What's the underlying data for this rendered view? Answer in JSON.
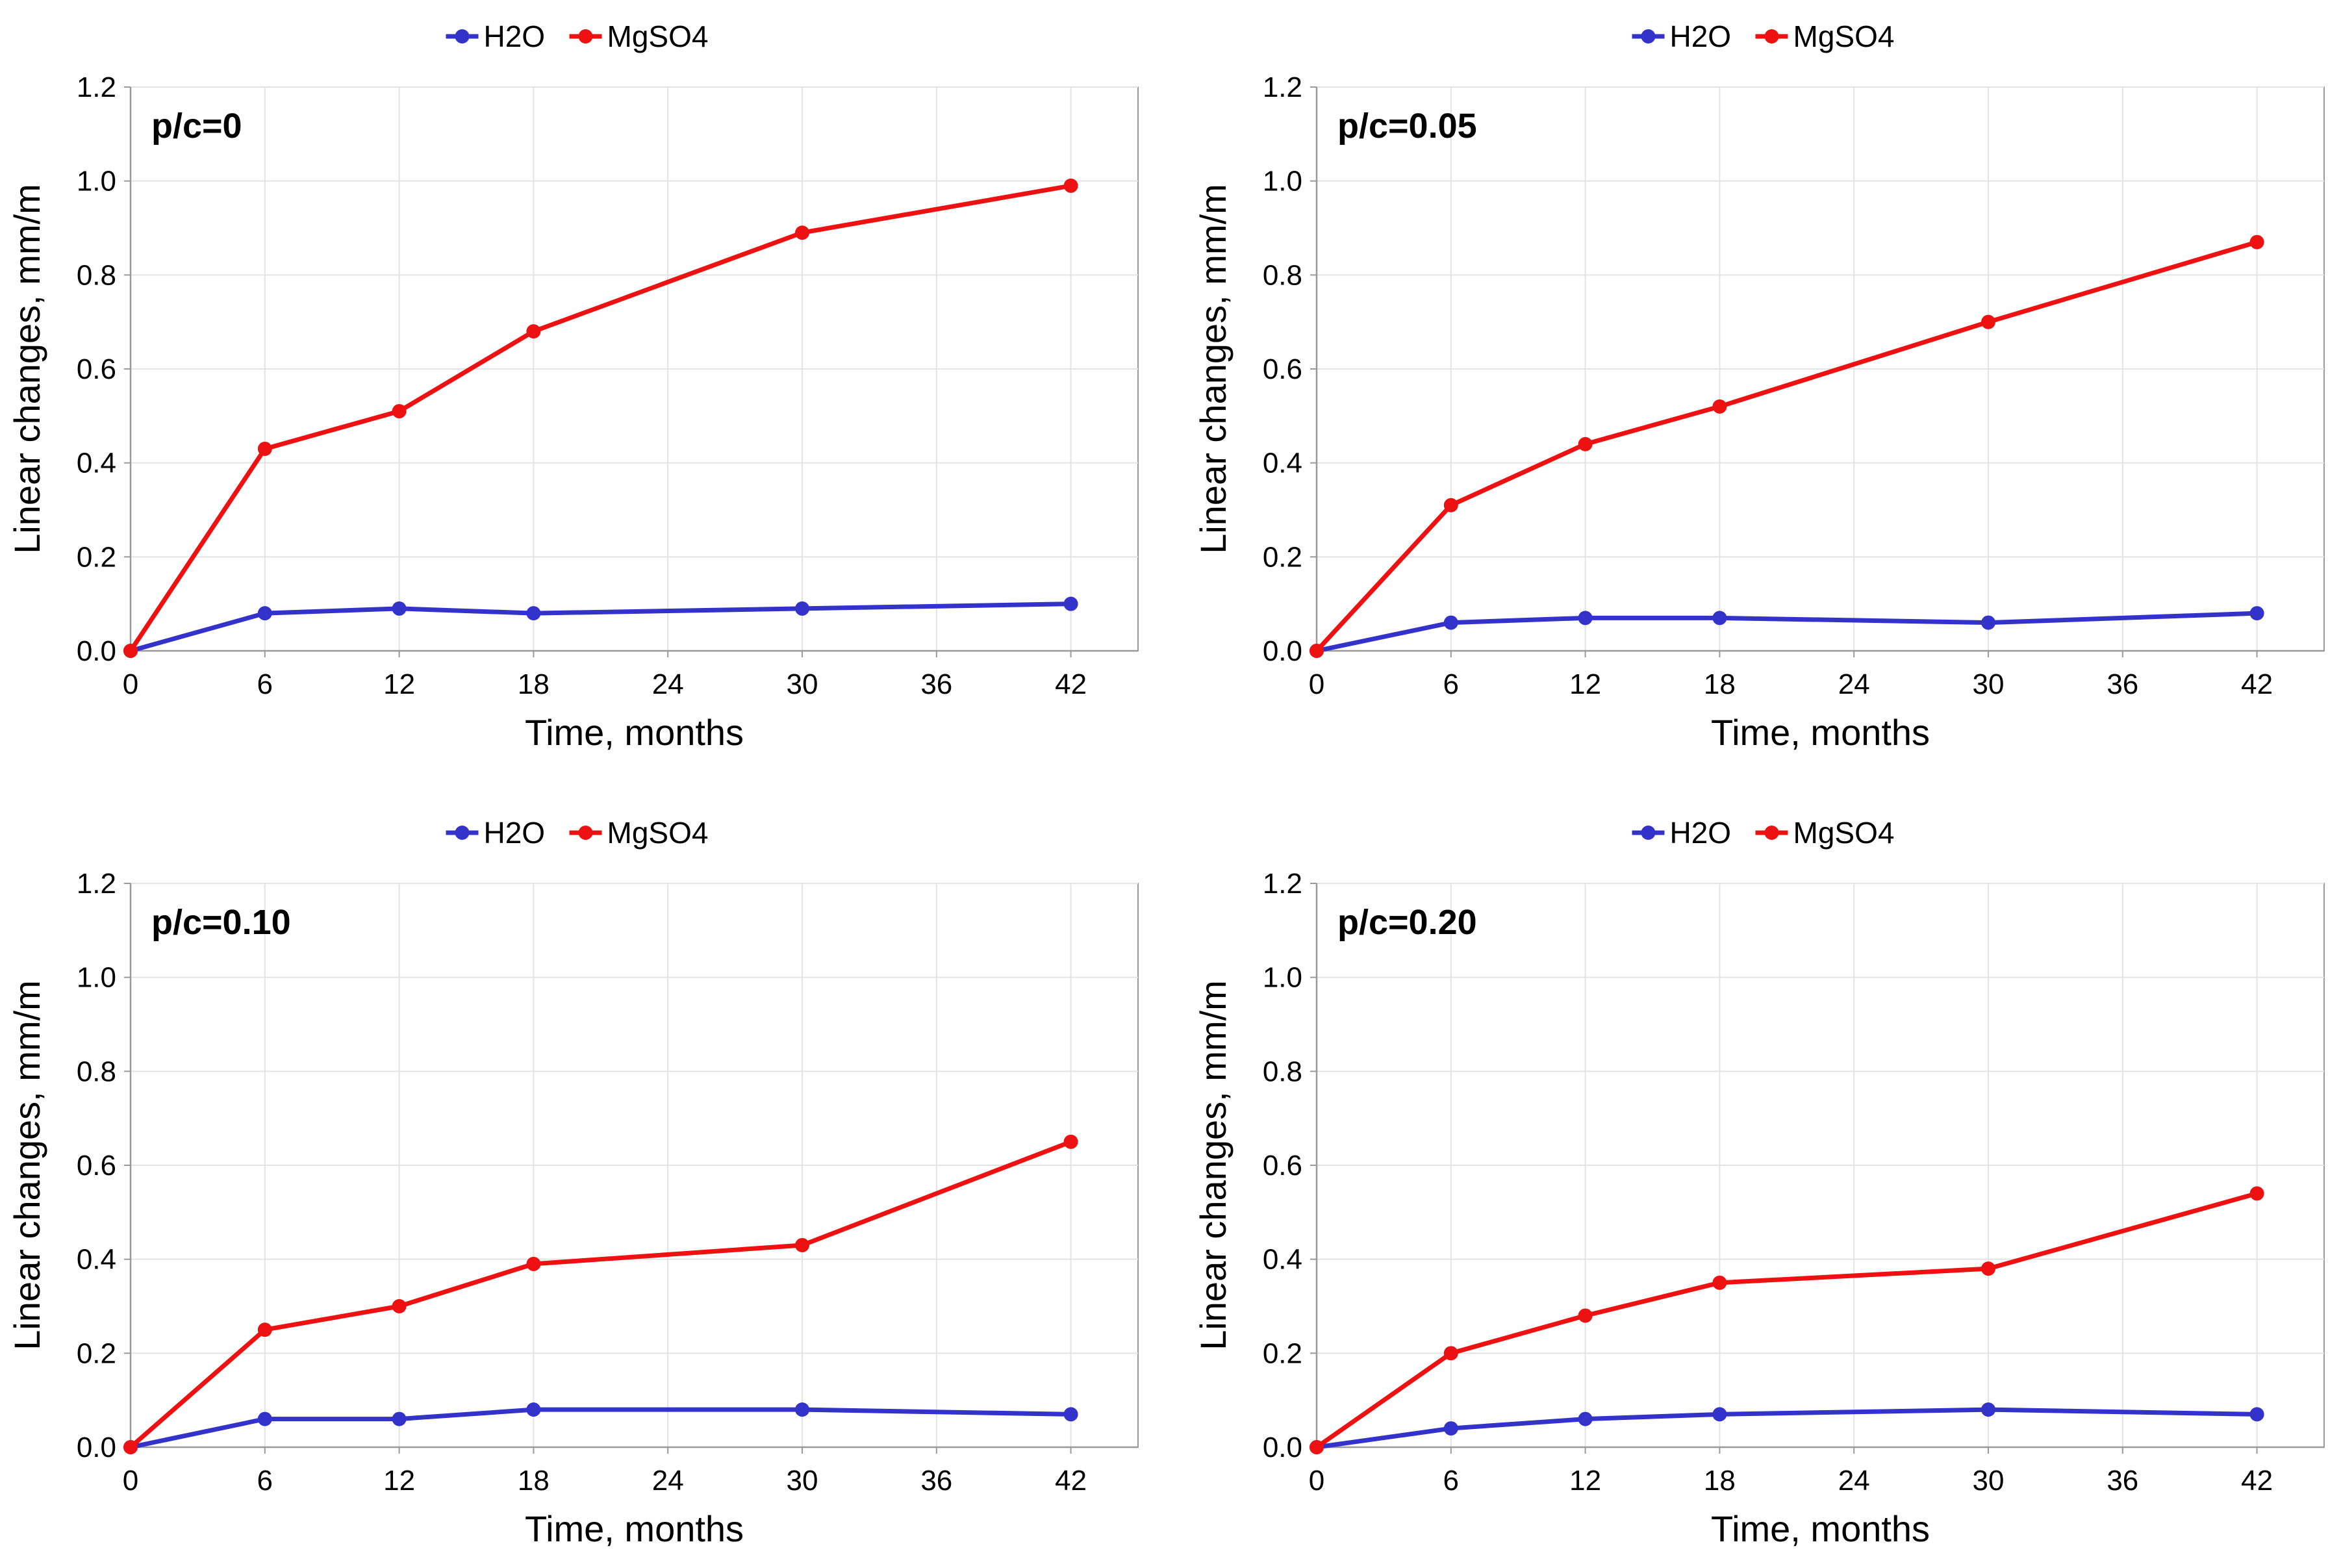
{
  "colors": {
    "h2o": "#3333CC",
    "mgso4": "#EE1111",
    "grid": "#E3E3E3",
    "axis": "#999999",
    "text": "#000000"
  },
  "chart_data": [
    {
      "type": "line",
      "annotation": "p/c=0",
      "xlabel": "Time, months",
      "ylabel": "Linear changes, mm/m",
      "xlim": [
        0,
        45
      ],
      "ylim": [
        0,
        1.2
      ],
      "xticks": [
        "0",
        "6",
        "12",
        "18",
        "24",
        "30",
        "36",
        "42"
      ],
      "yticks": [
        "0.0",
        "0.2",
        "0.4",
        "0.6",
        "0.8",
        "1.0",
        "1.2"
      ],
      "x": [
        0,
        6,
        12,
        18,
        30,
        42
      ],
      "legend": "top-center",
      "grid": true,
      "series": [
        {
          "name": "H2O",
          "values": [
            0,
            0.08,
            0.09,
            0.08,
            0.09,
            0.1
          ]
        },
        {
          "name": "MgSO4",
          "values": [
            0,
            0.43,
            0.51,
            0.68,
            0.89,
            0.99
          ]
        }
      ]
    },
    {
      "type": "line",
      "annotation": "p/c=0.05",
      "xlabel": "Time, months",
      "ylabel": "Linear changes, mm/m",
      "xlim": [
        0,
        45
      ],
      "ylim": [
        0,
        1.2
      ],
      "xticks": [
        "0",
        "6",
        "12",
        "18",
        "24",
        "30",
        "36",
        "42"
      ],
      "yticks": [
        "0.0",
        "0.2",
        "0.4",
        "0.6",
        "0.8",
        "1.0",
        "1.2"
      ],
      "x": [
        0,
        6,
        12,
        18,
        30,
        42
      ],
      "legend": "top-center",
      "grid": true,
      "series": [
        {
          "name": "H2O",
          "values": [
            0,
            0.06,
            0.07,
            0.07,
            0.06,
            0.08
          ]
        },
        {
          "name": "MgSO4",
          "values": [
            0,
            0.31,
            0.44,
            0.52,
            0.7,
            0.87
          ]
        }
      ]
    },
    {
      "type": "line",
      "annotation": "p/c=0.10",
      "xlabel": "Time, months",
      "ylabel": "Linear changes, mm/m",
      "xlim": [
        0,
        45
      ],
      "ylim": [
        0,
        1.2
      ],
      "xticks": [
        "0",
        "6",
        "12",
        "18",
        "24",
        "30",
        "36",
        "42"
      ],
      "yticks": [
        "0.0",
        "0.2",
        "0.4",
        "0.6",
        "0.8",
        "1.0",
        "1.2"
      ],
      "x": [
        0,
        6,
        12,
        18,
        30,
        42
      ],
      "legend": "top-center",
      "grid": true,
      "series": [
        {
          "name": "H2O",
          "values": [
            0,
            0.06,
            0.06,
            0.08,
            0.08,
            0.07
          ]
        },
        {
          "name": "MgSO4",
          "values": [
            0,
            0.25,
            0.3,
            0.39,
            0.43,
            0.65
          ]
        }
      ]
    },
    {
      "type": "line",
      "annotation": "p/c=0.20",
      "xlabel": "Time, months",
      "ylabel": "Linear changes, mm/m",
      "xlim": [
        0,
        45
      ],
      "ylim": [
        0,
        1.2
      ],
      "xticks": [
        "0",
        "6",
        "12",
        "18",
        "24",
        "30",
        "36",
        "42"
      ],
      "yticks": [
        "0.0",
        "0.2",
        "0.4",
        "0.6",
        "0.8",
        "1.0",
        "1.2"
      ],
      "x": [
        0,
        6,
        12,
        18,
        30,
        42
      ],
      "legend": "top-center",
      "grid": true,
      "series": [
        {
          "name": "H2O",
          "values": [
            0,
            0.04,
            0.06,
            0.07,
            0.08,
            0.07
          ]
        },
        {
          "name": "MgSO4",
          "values": [
            0,
            0.2,
            0.28,
            0.35,
            0.38,
            0.54
          ]
        }
      ]
    }
  ]
}
